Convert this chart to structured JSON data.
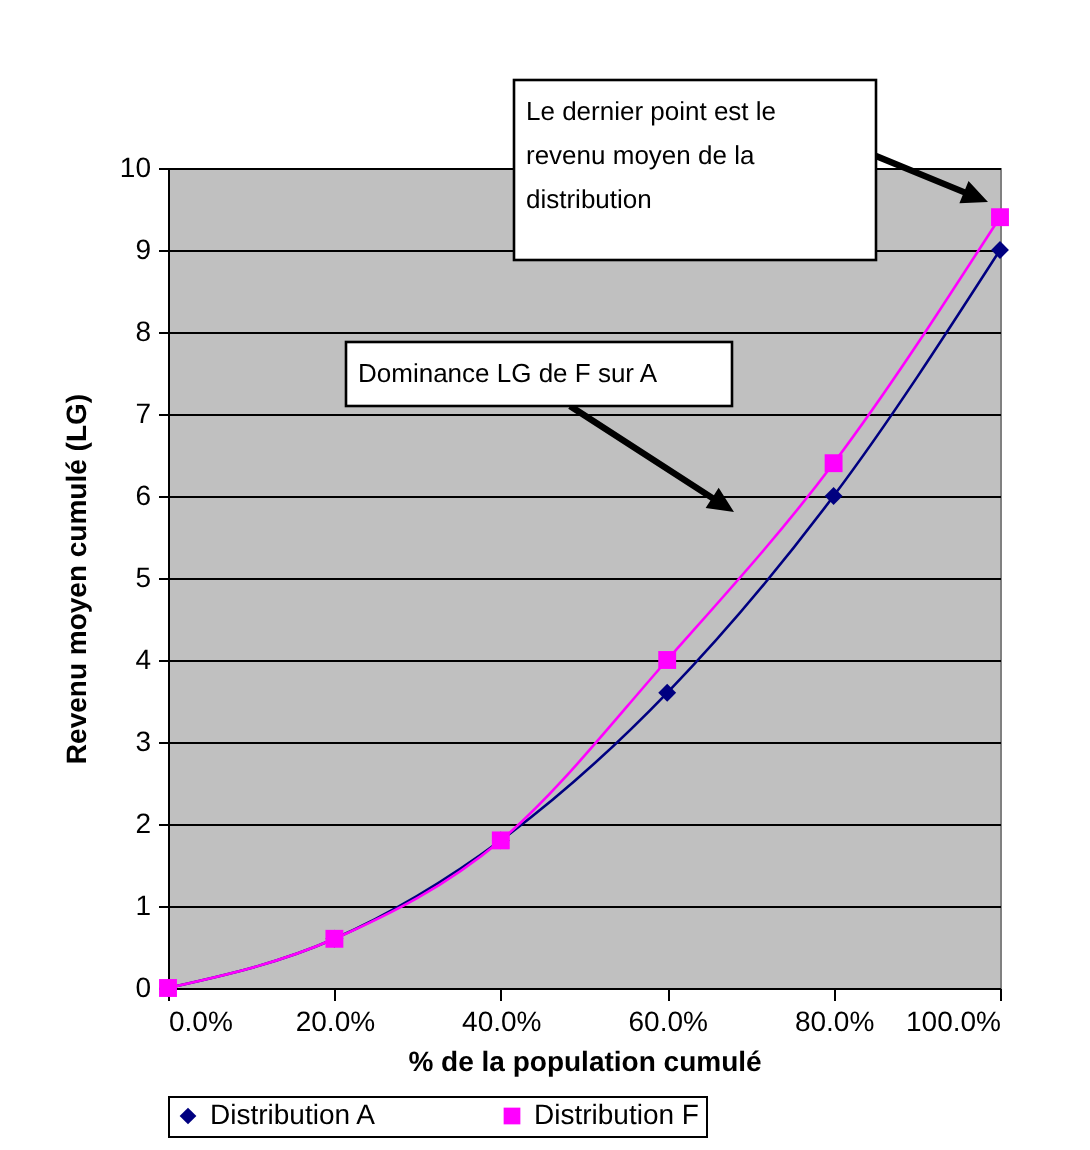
{
  "chart_data": {
    "type": "line",
    "xlabel": "% de la population cumulé",
    "ylabel": "Revenu moyen cumulé (LG)",
    "x": [
      0,
      20,
      40,
      60,
      80,
      100
    ],
    "xlim": [
      0,
      100
    ],
    "xticks": [
      {
        "value": 0,
        "label": "0.0%"
      },
      {
        "value": 20,
        "label": "20.0%"
      },
      {
        "value": 40,
        "label": "40.0%"
      },
      {
        "value": 60,
        "label": "60.0%"
      },
      {
        "value": 80,
        "label": "80.0%"
      },
      {
        "value": 100,
        "label": "100.0%"
      }
    ],
    "ylim": [
      0,
      10
    ],
    "yticks": [
      0,
      1,
      2,
      3,
      4,
      5,
      6,
      7,
      8,
      9,
      10
    ],
    "grid": "y",
    "legend": "bottom",
    "line_style": "solid",
    "series": [
      {
        "name": "Distribution A",
        "color": "#000080",
        "marker": "diamond",
        "values": [
          0,
          0.6,
          1.8,
          3.6,
          6,
          9
        ]
      },
      {
        "name": "Distribution F",
        "color": "#ff00ff",
        "marker": "square",
        "values": [
          0,
          0.6,
          1.8,
          4,
          6.4,
          9.4
        ]
      }
    ],
    "annotations": [
      "Le dernier point est le revenu moyen de la distribution",
      "Dominance LG de F sur A"
    ]
  }
}
